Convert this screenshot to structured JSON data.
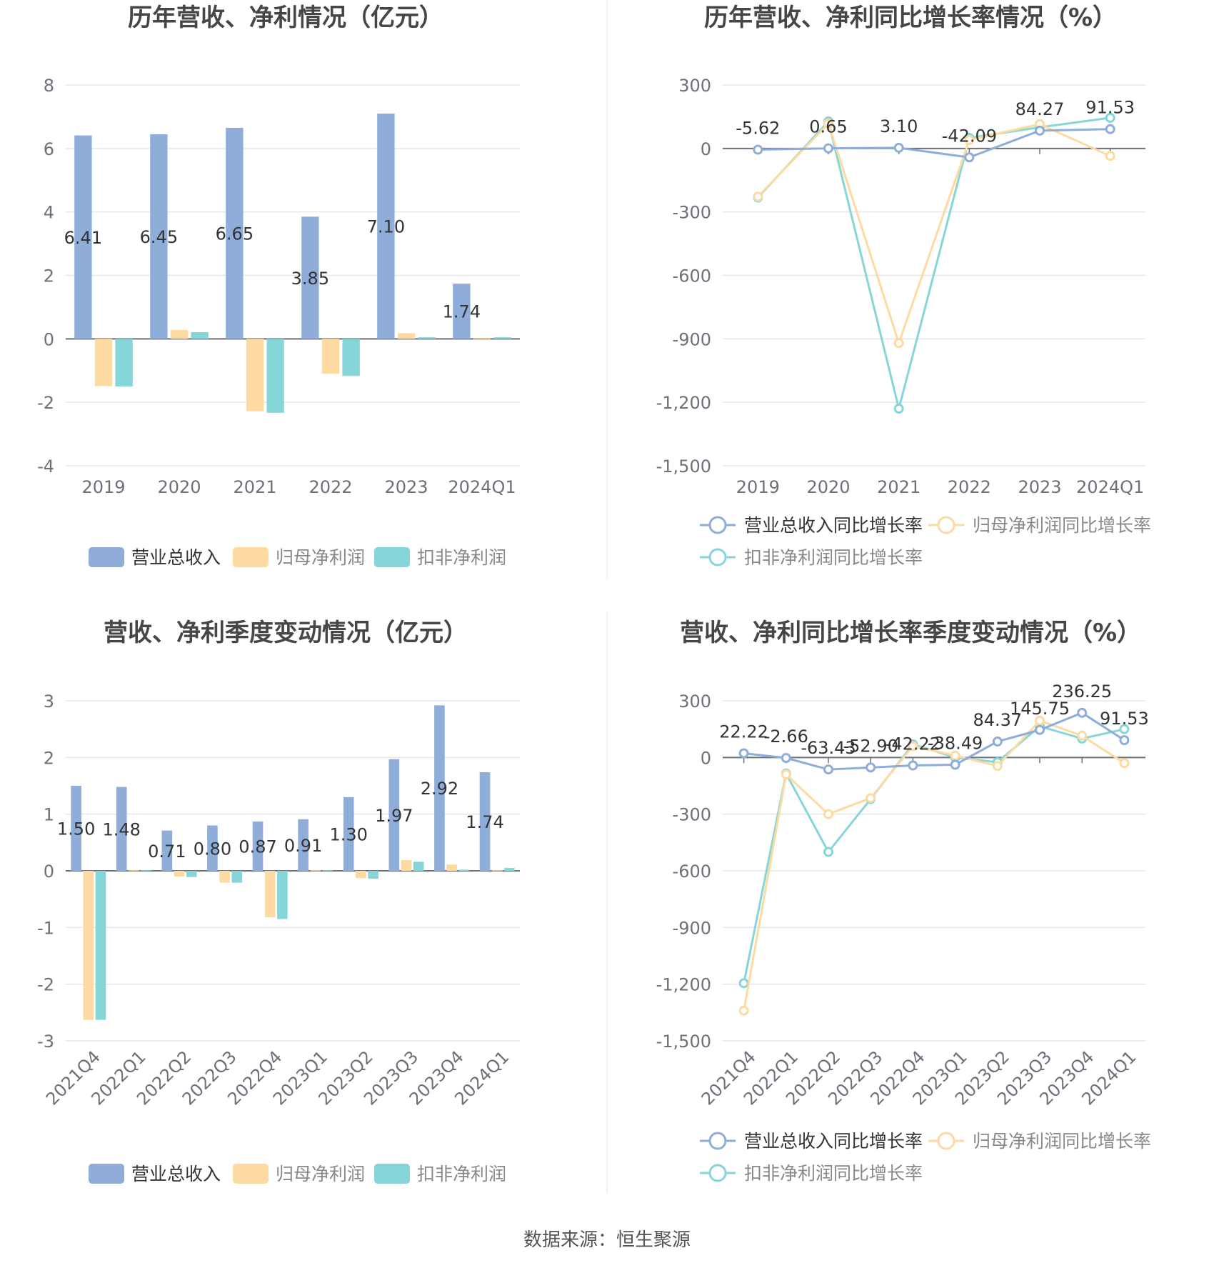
{
  "colors": {
    "revenue": "#8eadd9",
    "net_profit": "#fcdaa1",
    "deducted_profit": "#86d6d9",
    "grid": "#e3e6ee",
    "axis_text": "#6e7079",
    "title": "#464646",
    "label": "#333333"
  },
  "source": "数据来源：恒生聚源",
  "chart_data": [
    {
      "id": "annual_values",
      "type": "bar",
      "title": "历年营收、净利情况（亿元）",
      "categories": [
        "2019",
        "2020",
        "2021",
        "2022",
        "2023",
        "2024Q1"
      ],
      "ylim": [
        -4,
        8
      ],
      "yticks": [
        "8",
        "6",
        "4",
        "2",
        "0",
        "-2",
        "-4"
      ],
      "series": [
        {
          "name": "营业总收入",
          "values": [
            6.41,
            6.45,
            6.65,
            3.85,
            7.1,
            1.74
          ],
          "labels": [
            "6.41",
            "6.45",
            "6.65",
            "3.85",
            "7.10",
            "1.74"
          ]
        },
        {
          "name": "归母净利润",
          "values": [
            -1.49,
            0.28,
            -2.28,
            -1.1,
            0.18,
            0.01
          ]
        },
        {
          "name": "扣非净利润",
          "values": [
            -1.5,
            0.21,
            -2.33,
            -1.17,
            0.05,
            0.05
          ]
        }
      ],
      "legend": "bottom"
    },
    {
      "id": "annual_growth",
      "type": "line",
      "title": "历年营收、净利同比增长率情况（%）",
      "categories": [
        "2019",
        "2020",
        "2021",
        "2022",
        "2023",
        "2024Q1"
      ],
      "ylim": [
        -1500,
        300
      ],
      "yticks": [
        "300",
        "0",
        "-300",
        "-600",
        "-900",
        "-1,200",
        "-1,500"
      ],
      "series": [
        {
          "name": "营业总收入同比增长率",
          "values": [
            -5.62,
            0.65,
            3.1,
            -42.09,
            84.27,
            91.53
          ],
          "labels": [
            "-5.62",
            "0.65",
            "3.10",
            "-42.09",
            "84.27",
            "91.53"
          ]
        },
        {
          "name": "归母净利润同比增长率",
          "values": [
            -228,
            118,
            -920,
            40,
            115,
            -35
          ]
        },
        {
          "name": "扣非净利润同比增长率",
          "values": [
            -232,
            128,
            -1230,
            50,
            100,
            145
          ]
        }
      ],
      "legend": "bottom"
    },
    {
      "id": "quarterly_values",
      "type": "bar",
      "title": "营收、净利季度变动情况（亿元）",
      "categories": [
        "2021Q4",
        "2022Q1",
        "2022Q2",
        "2022Q3",
        "2022Q4",
        "2023Q1",
        "2023Q2",
        "2023Q3",
        "2023Q4",
        "2024Q1"
      ],
      "ylim": [
        -3,
        3
      ],
      "yticks": [
        "3",
        "2",
        "1",
        "0",
        "-1",
        "-2",
        "-3"
      ],
      "series": [
        {
          "name": "营业总收入",
          "values": [
            1.5,
            1.48,
            0.71,
            0.8,
            0.87,
            0.91,
            1.3,
            1.97,
            2.92,
            1.74
          ],
          "labels": [
            "1.50",
            "1.48",
            "0.71",
            "0.80",
            "0.87",
            "0.91",
            "1.30",
            "1.97",
            "2.92",
            "1.74"
          ]
        },
        {
          "name": "归母净利润",
          "values": [
            -2.63,
            0.01,
            -0.1,
            -0.21,
            -0.82,
            0.01,
            -0.13,
            0.19,
            0.11,
            0.01
          ]
        },
        {
          "name": "扣非净利润",
          "values": [
            -2.63,
            0.01,
            -0.11,
            -0.21,
            -0.85,
            0.01,
            -0.14,
            0.16,
            0.02,
            0.05
          ]
        }
      ],
      "legend": "bottom"
    },
    {
      "id": "quarterly_growth",
      "type": "line",
      "title": "营收、净利同比增长率季度变动情况（%）",
      "categories": [
        "2021Q4",
        "2022Q1",
        "2022Q2",
        "2022Q3",
        "2022Q4",
        "2023Q1",
        "2023Q2",
        "2023Q3",
        "2023Q4",
        "2024Q1"
      ],
      "ylim": [
        -1500,
        300
      ],
      "yticks": [
        "300",
        "0",
        "-300",
        "-600",
        "-900",
        "-1,200",
        "-1,500"
      ],
      "series": [
        {
          "name": "营业总收入同比增长率",
          "values": [
            22.22,
            -2.66,
            -63.43,
            -52.9,
            -42.22,
            -38.49,
            84.37,
            145.75,
            236.25,
            91.53
          ],
          "labels": [
            "22.22",
            "-2.66",
            "-63.43",
            "-52.90",
            "-42.22",
            "-38.49",
            "84.37",
            "145.75",
            "236.25",
            "91.53"
          ]
        },
        {
          "name": "归母净利润同比增长率",
          "values": [
            -1340,
            -90,
            -300,
            -215,
            60,
            10,
            -45,
            195,
            115,
            -30
          ]
        },
        {
          "name": "扣非净利润同比增长率",
          "values": [
            -1195,
            -85,
            -500,
            -220,
            70,
            0,
            -25,
            165,
            100,
            150
          ]
        }
      ],
      "legend": "bottom"
    }
  ]
}
